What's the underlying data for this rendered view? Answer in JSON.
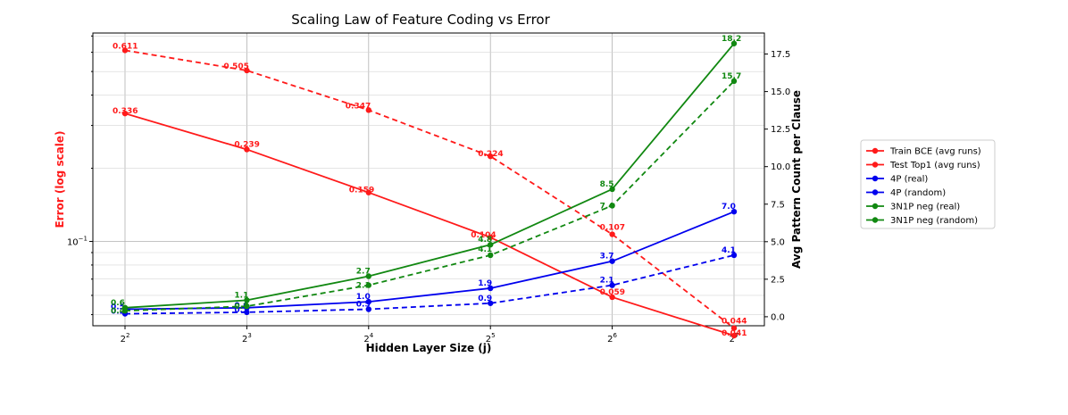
{
  "chart_data": {
    "type": "line",
    "title": "Scaling Law of Feature Coding vs Error",
    "xlabel": "Hidden Layer Size (j)",
    "ylabel_left": "Error (log scale)",
    "ylabel_right": "Avg Pattern Count per Clause",
    "x": [
      4,
      8,
      16,
      32,
      64,
      128
    ],
    "x_tick_labels": [
      {
        "base": "2",
        "exp": "2"
      },
      {
        "base": "2",
        "exp": "3"
      },
      {
        "base": "2",
        "exp": "4"
      },
      {
        "base": "2",
        "exp": "5"
      },
      {
        "base": "2",
        "exp": "6"
      },
      {
        "base": "2",
        "exp": "7"
      }
    ],
    "x_scale": "log2",
    "y_left_scale": "log",
    "y_left_range": [
      0.045,
      0.72
    ],
    "y_left_tick_labels": [
      {
        "base": "10",
        "exp": "−1",
        "value": 0.1
      }
    ],
    "y_right_range": [
      -0.6,
      18.9
    ],
    "y_right_ticks": [
      0.0,
      2.5,
      5.0,
      7.5,
      10.0,
      12.5,
      15.0,
      17.5
    ],
    "grid": true,
    "legend_position": "outside-right",
    "series": [
      {
        "name": "Train BCE (avg runs)",
        "axis": "left",
        "color": "#ff1a1a",
        "style": "solid",
        "values": [
          0.336,
          0.239,
          0.159,
          0.104,
          0.059,
          0.041
        ],
        "labels": [
          "0.336",
          "0.239",
          "0.159",
          "0.104",
          "0.059",
          "0.041"
        ]
      },
      {
        "name": "Test Top1 (avg runs)",
        "axis": "left",
        "color": "#ff1a1a",
        "style": "dashed",
        "values": [
          0.611,
          0.505,
          0.347,
          0.224,
          0.107,
          0.044
        ],
        "labels": [
          "0.611",
          "0.505",
          "0.347",
          "0.224",
          "0.107",
          "0.044"
        ]
      },
      {
        "name": "4P (real)",
        "axis": "right",
        "color": "#0000ee",
        "style": "solid",
        "values": [
          0.5,
          0.6,
          1.0,
          1.9,
          3.7,
          7.0
        ],
        "labels": [
          "0.5",
          "0.6",
          "1.0",
          "1.9",
          "3.7",
          "7.0"
        ]
      },
      {
        "name": "4P (random)",
        "axis": "right",
        "color": "#0000ee",
        "style": "dashed",
        "values": [
          0.2,
          0.3,
          0.5,
          0.9,
          2.1,
          4.1
        ],
        "labels": [
          "0.2",
          "0.3",
          "0.5",
          "0.9",
          "2.1",
          "4.1"
        ]
      },
      {
        "name": "3N1P neg (real)",
        "axis": "right",
        "color": "#118811",
        "style": "solid",
        "values": [
          0.6,
          1.1,
          2.7,
          4.8,
          8.5,
          18.2
        ],
        "labels": [
          "0.6",
          "1.1",
          "2.7",
          "4.8",
          "8.5",
          "18.2"
        ]
      },
      {
        "name": "3N1P neg (random)",
        "axis": "right",
        "color": "#118811",
        "style": "dashed",
        "values": [
          0.4,
          0.7,
          2.1,
          4.1,
          7.4,
          15.7
        ],
        "labels": [
          "0.4",
          "0.7",
          "2.1",
          "4.1",
          "7.4",
          "15.7"
        ]
      }
    ]
  }
}
